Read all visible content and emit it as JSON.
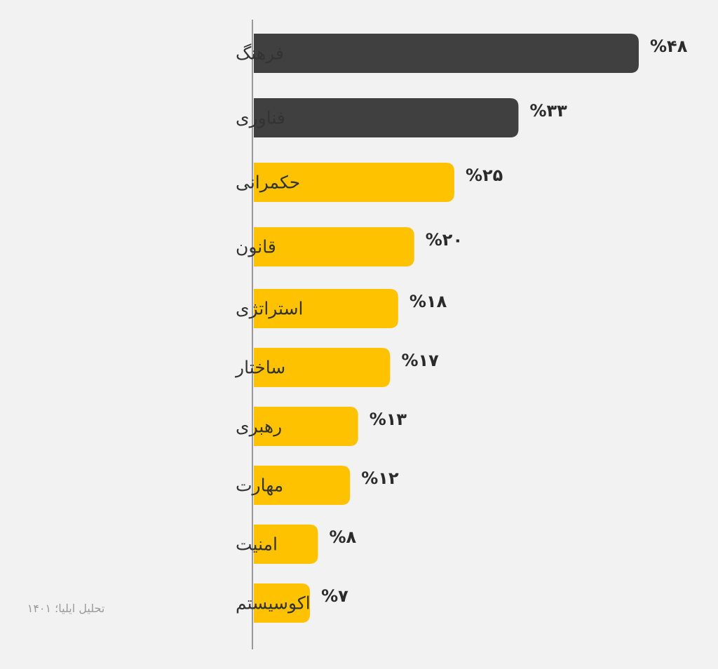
{
  "chart_data": {
    "type": "bar",
    "orientation": "horizontal",
    "categories": [
      "فرهنگ",
      "فناوری",
      "حکمرانی",
      "قانون",
      "استراتژی",
      "ساختار",
      "رهبری",
      "مهارت",
      "امنیت",
      "اکوسیستم"
    ],
    "values": [
      48,
      33,
      25,
      20,
      18,
      17,
      13,
      12,
      8,
      7
    ],
    "value_labels": [
      "%۴۸",
      "%۳۳",
      "%۲۵",
      "%۲۰",
      "%۱۸",
      "%۱۷",
      "%۱۳",
      "%۱۲",
      "%۸",
      "%۷"
    ],
    "unit": "%",
    "colors": {
      "highlight": "#404040",
      "default": "#ffc200",
      "axis": "#9a9a9a",
      "label": "#333333",
      "value": "#2b2b2b",
      "background": "#f2f2f2"
    },
    "highlighted": [
      "فرهنگ",
      "فناوری"
    ],
    "xlim": [
      0,
      48
    ],
    "grid": false,
    "legend": "none"
  },
  "source": "تحلیل ایلیا؛ ۱۴۰۱"
}
